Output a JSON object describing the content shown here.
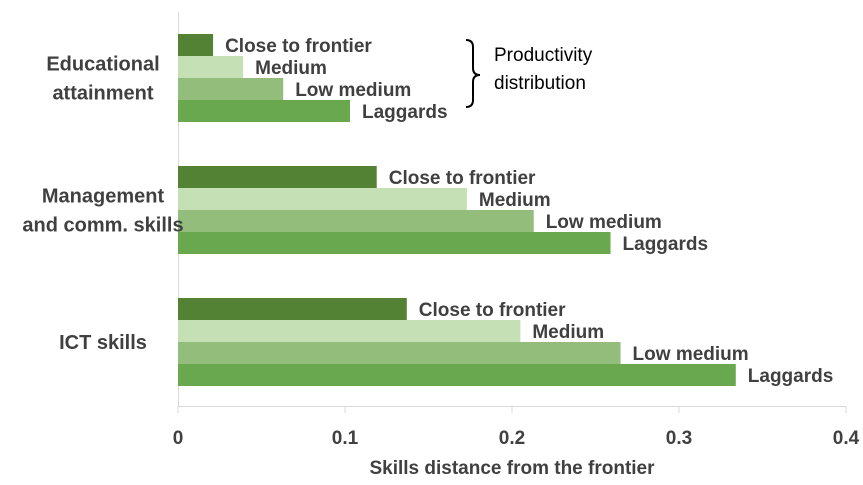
{
  "chart_data": {
    "type": "bar",
    "orientation": "horizontal",
    "categories": [
      "Educational attainment",
      "Management and comm. skills",
      "ICT skills"
    ],
    "category_label_lines": [
      [
        "Educational",
        "attainment"
      ],
      [
        "Management",
        "and comm. skills"
      ],
      [
        "ICT skills"
      ]
    ],
    "series": [
      {
        "name": "Close to frontier",
        "color": "#548235",
        "values": [
          0.021,
          0.119,
          0.137
        ]
      },
      {
        "name": "Medium",
        "color": "#c5e0b4",
        "values": [
          0.039,
          0.173,
          0.205
        ]
      },
      {
        "name": "Low medium",
        "color": "#93bd7b",
        "values": [
          0.063,
          0.213,
          0.265
        ]
      },
      {
        "name": "Laggards",
        "color": "#6aa84f",
        "values": [
          0.103,
          0.259,
          0.334
        ]
      }
    ],
    "xlim": [
      0,
      0.4
    ],
    "xticks": [
      "0",
      "0.1",
      "0.2",
      "0.3",
      "0.4"
    ],
    "xlabel": "Skills distance from the frontier",
    "ylabel": "",
    "grid": false,
    "legend_annotation": [
      "Productivity",
      "distribution"
    ]
  }
}
